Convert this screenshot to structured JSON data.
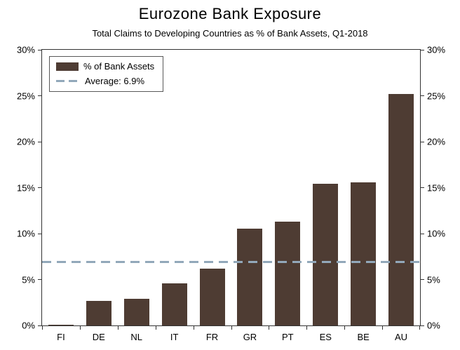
{
  "chart_data": {
    "type": "bar",
    "title": "Eurozone Bank Exposure",
    "subtitle": "Total Claims to Developing Countries as % of Bank Assets, Q1-2018",
    "categories": [
      "FI",
      "DE",
      "NL",
      "IT",
      "FR",
      "GR",
      "PT",
      "ES",
      "BE",
      "AU"
    ],
    "values": [
      0.1,
      2.7,
      2.9,
      4.6,
      6.2,
      10.5,
      11.3,
      15.4,
      15.6,
      25.2
    ],
    "series_name": "% of Bank Assets",
    "average": 6.9,
    "xlabel": "",
    "ylabel": "",
    "ylim": [
      0,
      30
    ],
    "yticks": [
      0,
      5,
      10,
      15,
      20,
      25,
      30
    ],
    "ytick_suffix": "%",
    "grid": false,
    "legend_position": "top-left",
    "legend_entries": [
      {
        "label": "% of Bank Assets"
      },
      {
        "label": "Average: 6.9%"
      }
    ],
    "colors": {
      "bar": "#4e3c33",
      "average_line": "#92a8ba",
      "axis": "#333333",
      "background": "#ffffff"
    }
  }
}
